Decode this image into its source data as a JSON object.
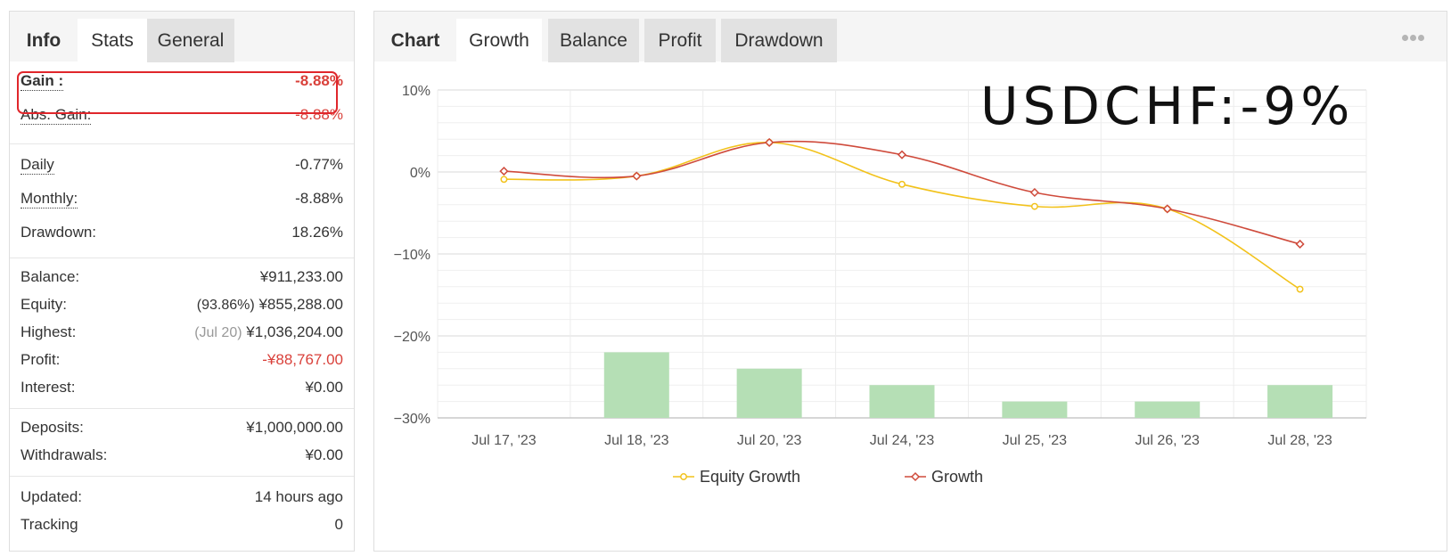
{
  "info": {
    "tabs": [
      {
        "label": "Info",
        "state": "label"
      },
      {
        "label": "Stats",
        "state": "active"
      },
      {
        "label": "General",
        "state": "inactive"
      }
    ],
    "gain": {
      "label": "Gain :",
      "value": "-8.88%"
    },
    "abs_gain": {
      "label": "Abs. Gain:",
      "value": "-8.88%"
    },
    "daily": {
      "label": "Daily",
      "value": "-0.77%"
    },
    "monthly": {
      "label": "Monthly:",
      "value": "-8.88%"
    },
    "drawdown": {
      "label": "Drawdown:",
      "value": "18.26%"
    },
    "balance": {
      "label": "Balance:",
      "value": "¥911,233.00"
    },
    "equity": {
      "label": "Equity:",
      "prefix": "(93.86%)",
      "value": "¥855,288.00"
    },
    "highest": {
      "label": "Highest:",
      "prefix": "(Jul 20)",
      "value": "¥1,036,204.00"
    },
    "profit": {
      "label": "Profit:",
      "value": "-¥88,767.00"
    },
    "interest": {
      "label": "Interest:",
      "value": "¥0.00"
    },
    "deposits": {
      "label": "Deposits:",
      "value": "¥1,000,000.00"
    },
    "withdrawals": {
      "label": "Withdrawals:",
      "value": "¥0.00"
    },
    "updated": {
      "label": "Updated:",
      "value": "14 hours ago"
    },
    "tracking": {
      "label": "Tracking",
      "value": "0"
    }
  },
  "chart_panel": {
    "tabs": [
      {
        "label": "Chart",
        "state": "label"
      },
      {
        "label": "Growth",
        "state": "active"
      },
      {
        "label": "Balance",
        "state": "inactive"
      },
      {
        "label": "Profit",
        "state": "inactive"
      },
      {
        "label": "Drawdown",
        "state": "inactive"
      }
    ],
    "more_icon": "more-horizontal-icon",
    "overlay_text": "USDCHF:-9%"
  },
  "colors": {
    "negative": "#d9403a",
    "equity_line": "#f2c21b",
    "growth_line": "#cf4b3c",
    "bars": "#b5dfb5",
    "highlight": "#e0262b"
  },
  "chart_data": {
    "type": "line",
    "categories": [
      "Jul 17, '23",
      "Jul 18, '23",
      "Jul 20, '23",
      "Jul 24, '23",
      "Jul 25, '23",
      "Jul 26, '23",
      "Jul 28, '23"
    ],
    "y_ticks": [
      "10%",
      "0%",
      "−10%",
      "−20%",
      "−30%"
    ],
    "ylim": [
      -30,
      10
    ],
    "grid": true,
    "legend_position": "bottom",
    "series": [
      {
        "name": "Equity Growth",
        "type": "line",
        "color": "#f2c21b",
        "marker": "circle",
        "values": [
          -0.9,
          -0.5,
          3.6,
          -1.5,
          -4.2,
          -4.5,
          -14.3
        ]
      },
      {
        "name": "Growth",
        "type": "line",
        "color": "#cf4b3c",
        "marker": "diamond",
        "values": [
          0.1,
          -0.5,
          3.6,
          2.1,
          -2.5,
          -4.5,
          -8.8
        ]
      },
      {
        "type": "bar",
        "color": "#b5dfb5",
        "values": [
          null,
          -22,
          -24,
          -26,
          -28,
          -28,
          -26
        ]
      }
    ]
  }
}
